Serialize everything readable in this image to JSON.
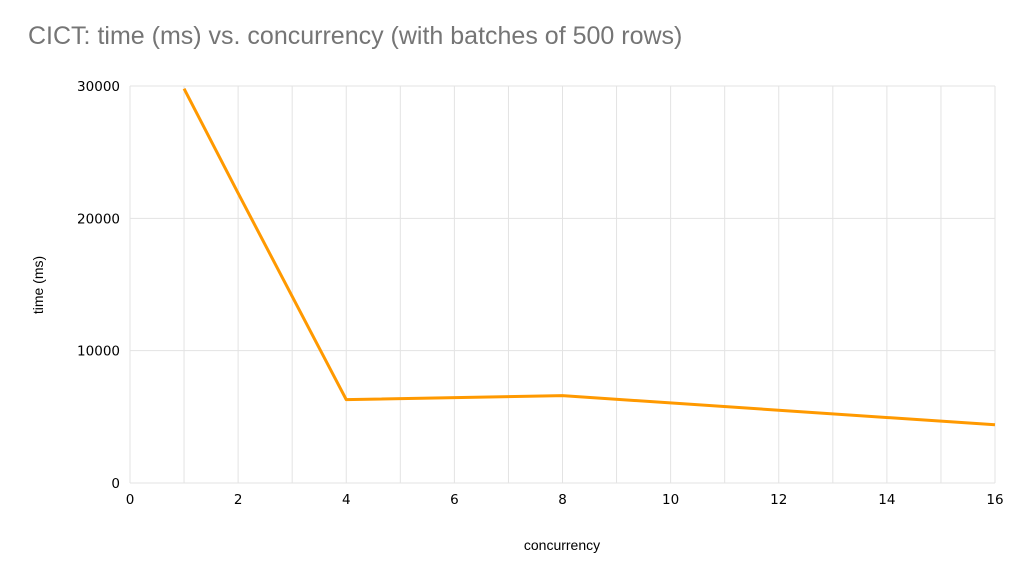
{
  "chart_data": {
    "type": "line",
    "title": "CICT: time (ms) vs. concurrency (with batches of 500 rows)",
    "xlabel": "concurrency",
    "ylabel": "time (ms)",
    "x": [
      1,
      2,
      4,
      8,
      16
    ],
    "y": [
      29800,
      21900,
      6300,
      6600,
      4400
    ],
    "xlim": [
      0,
      16
    ],
    "ylim": [
      0,
      30000
    ],
    "x_ticks": [
      0,
      2,
      4,
      6,
      8,
      10,
      12,
      14,
      16
    ],
    "y_ticks": [
      0,
      10000,
      20000,
      30000
    ],
    "x_minor_grid_step": 1,
    "grid": true,
    "legend": "none",
    "line_color": "#ff9900",
    "grid_color": "#e3e3e3",
    "title_color": "#757575"
  }
}
